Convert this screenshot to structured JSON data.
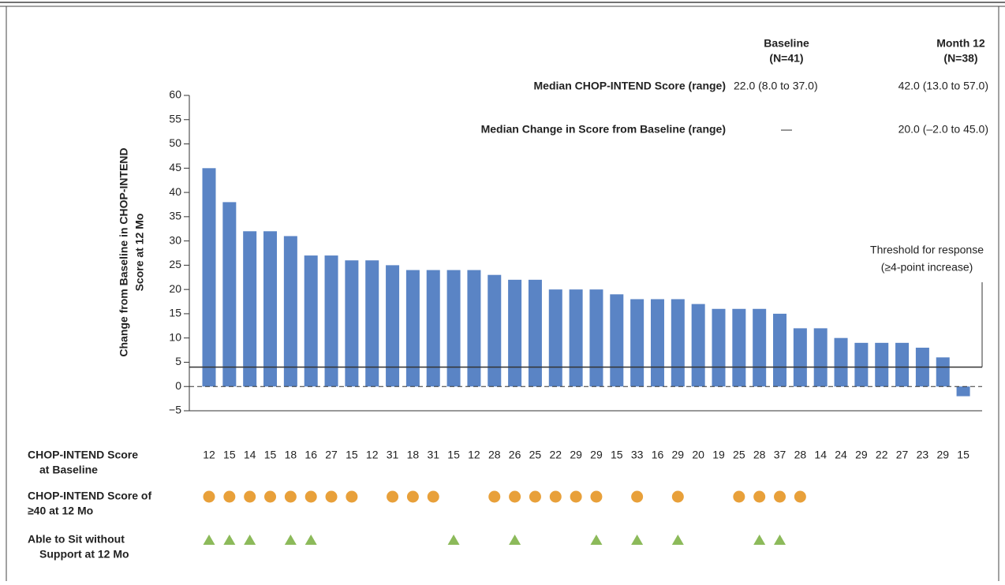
{
  "chart_data": {
    "type": "bar",
    "y_label": [
      "Change from Baseline in CHOP-INTEND",
      "Score at 12 Mo"
    ],
    "values": [
      45,
      38,
      32,
      32,
      31,
      27,
      27,
      26,
      26,
      25,
      24,
      24,
      24,
      24,
      23,
      22,
      22,
      20,
      20,
      20,
      19,
      18,
      18,
      18,
      17,
      16,
      16,
      16,
      15,
      12,
      12,
      10,
      9,
      9,
      9,
      8,
      6,
      -2
    ],
    "color": "#5a84c5",
    "ylim": [
      -5,
      60
    ],
    "yticks": [
      {
        "value": -5,
        "label": "−5"
      },
      0,
      5,
      10,
      15,
      20,
      25,
      30,
      35,
      40,
      45,
      50,
      55,
      60
    ],
    "threshold": {
      "value": 4,
      "label": [
        "Threshold for response",
        "(≥4-point increase)"
      ]
    },
    "summary": {
      "columns": [
        [
          "Baseline",
          "(N=41)"
        ],
        [
          "Month 12",
          "(N=38)"
        ]
      ],
      "rows": [
        {
          "label": "Median CHOP-INTEND Score (range)",
          "cells": [
            "22.0 (8.0 to 37.0)",
            "42.0 (13.0 to 57.0)"
          ]
        },
        {
          "label": "Median Change in Score from Baseline (range)",
          "cells": [
            "—",
            "20.0 (–2.0 to 45.0)"
          ]
        }
      ]
    },
    "rows": [
      {
        "label": [
          "CHOP-INTEND Score",
          "at Baseline"
        ],
        "values": [
          12,
          15,
          14,
          15,
          18,
          16,
          27,
          15,
          12,
          31,
          18,
          31,
          15,
          12,
          28,
          26,
          25,
          22,
          29,
          29,
          15,
          33,
          16,
          29,
          20,
          19,
          25,
          28,
          37,
          28,
          14,
          24,
          29,
          22,
          27,
          23,
          29,
          15
        ]
      },
      {
        "label": [
          "CHOP-INTEND Score of",
          "≥40 at 12 Mo"
        ],
        "marker": "circle",
        "color": "#e8a03a",
        "values": [
          true,
          true,
          true,
          true,
          true,
          true,
          true,
          true,
          false,
          true,
          true,
          true,
          false,
          false,
          true,
          true,
          true,
          true,
          true,
          true,
          false,
          true,
          false,
          true,
          false,
          false,
          true,
          true,
          true,
          true,
          false,
          false,
          false,
          false,
          false,
          false,
          false,
          false
        ]
      },
      {
        "label": [
          "Able to Sit without",
          "Support at 12 Mo"
        ],
        "marker": "triangle",
        "color": "#8cba5a",
        "values": [
          true,
          true,
          true,
          false,
          true,
          true,
          false,
          false,
          false,
          false,
          false,
          false,
          true,
          false,
          false,
          true,
          false,
          false,
          false,
          true,
          false,
          true,
          false,
          true,
          false,
          false,
          false,
          true,
          true,
          false,
          false,
          false,
          false,
          false,
          false,
          false,
          false,
          false
        ]
      }
    ]
  }
}
